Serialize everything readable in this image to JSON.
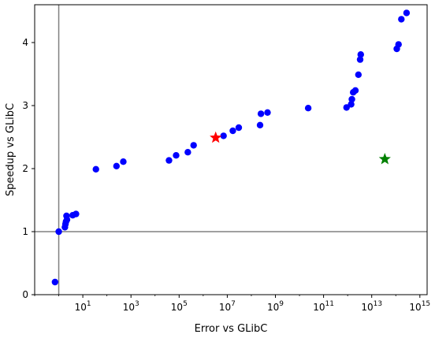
{
  "chart_data": {
    "type": "scatter",
    "xlabel": "Error vs GLibC",
    "ylabel": "Speedup vs GLibC",
    "x_scale": "log",
    "xlim": [
      0.1,
      2000000000000000.0
    ],
    "ylim": [
      0,
      4.6
    ],
    "x_ticks": [
      {
        "value": 10,
        "base": "10",
        "exp": "1"
      },
      {
        "value": 1000,
        "base": "10",
        "exp": "3"
      },
      {
        "value": 100000,
        "base": "10",
        "exp": "5"
      },
      {
        "value": 10000000,
        "base": "10",
        "exp": "7"
      },
      {
        "value": 1000000000,
        "base": "10",
        "exp": "9"
      },
      {
        "value": 100000000000,
        "base": "10",
        "exp": "11"
      },
      {
        "value": 10000000000000,
        "base": "10",
        "exp": "13"
      },
      {
        "value": 1000000000000000,
        "base": "10",
        "exp": "15"
      }
    ],
    "y_ticks": [
      0,
      1,
      2,
      3,
      4
    ],
    "y_tick_labels": [
      "0",
      "1",
      "2",
      "3",
      "4"
    ],
    "reference_lines": {
      "x": 1,
      "y": 1,
      "color": "#808080"
    },
    "grid": false,
    "colors": {
      "points": "#0000ff",
      "star_red": "#ff0000",
      "star_green": "#008000"
    },
    "series": [
      {
        "marker": "circle",
        "color": "#0000ff",
        "points": [
          {
            "x": 0.7,
            "y": 0.2
          },
          {
            "x": 1.0,
            "y": 1.0
          },
          {
            "x": 1.8,
            "y": 1.07
          },
          {
            "x": 1.9,
            "y": 1.12
          },
          {
            "x": 2.0,
            "y": 1.16
          },
          {
            "x": 2.2,
            "y": 1.19
          },
          {
            "x": 2.1,
            "y": 1.25
          },
          {
            "x": 3.8,
            "y": 1.26
          },
          {
            "x": 5.2,
            "y": 1.28
          },
          {
            "x": 35,
            "y": 1.99
          },
          {
            "x": 250,
            "y": 2.04
          },
          {
            "x": 480,
            "y": 2.11
          },
          {
            "x": 38000,
            "y": 2.13
          },
          {
            "x": 75000,
            "y": 2.21
          },
          {
            "x": 230000,
            "y": 2.26
          },
          {
            "x": 400000,
            "y": 2.37
          },
          {
            "x": 7000000,
            "y": 2.52
          },
          {
            "x": 17000000,
            "y": 2.6
          },
          {
            "x": 30000000,
            "y": 2.65
          },
          {
            "x": 230000000,
            "y": 2.69
          },
          {
            "x": 250000000,
            "y": 2.87
          },
          {
            "x": 470000000,
            "y": 2.89
          },
          {
            "x": 23000000000,
            "y": 2.96
          },
          {
            "x": 900000000000,
            "y": 2.97
          },
          {
            "x": 1400000000000,
            "y": 3.02
          },
          {
            "x": 1500000000000,
            "y": 3.1
          },
          {
            "x": 1700000000000,
            "y": 3.21
          },
          {
            "x": 2100000000000,
            "y": 3.24
          },
          {
            "x": 2800000000000,
            "y": 3.49
          },
          {
            "x": 3300000000000,
            "y": 3.73
          },
          {
            "x": 3500000000000,
            "y": 3.81
          },
          {
            "x": 110000000000000,
            "y": 3.9
          },
          {
            "x": 130000000000000,
            "y": 3.97
          },
          {
            "x": 170000000000000,
            "y": 4.37
          },
          {
            "x": 280000000000000,
            "y": 4.47
          }
        ]
      },
      {
        "marker": "star",
        "color": "#ff0000",
        "points": [
          {
            "x": 3300000,
            "y": 2.49
          }
        ]
      },
      {
        "marker": "star",
        "color": "#008000",
        "points": [
          {
            "x": 35000000000000,
            "y": 2.15
          }
        ]
      }
    ]
  }
}
